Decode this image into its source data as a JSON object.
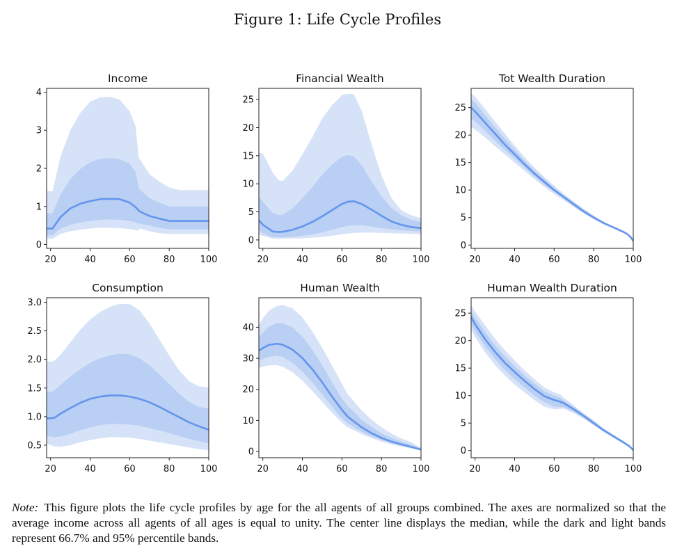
{
  "figure": {
    "title": "Figure 1: Life Cycle Profiles",
    "note_label": "Note:",
    "note_text": "This figure plots the life cycle profiles by age for the all agents of all groups combined. The axes are normalized so that the average income across all agents of all ages is equal to unity. The center line displays the median, while the dark and light bands represent 66.7% and 95% percentile bands."
  },
  "colors": {
    "median_line": "#6495ed",
    "band_dark": "#b9cff3",
    "band_light": "#d6e2f7",
    "axis": "#222222"
  },
  "chart_data": [
    {
      "type": "area",
      "title": "Income",
      "xlabel": "",
      "ylabel": "",
      "xlim": [
        18,
        100
      ],
      "ylim": [
        -0.1,
        4.1
      ],
      "xticks": [
        20,
        40,
        60,
        80,
        100
      ],
      "yticks": [
        0,
        1,
        2,
        3,
        4
      ],
      "xtick_labels": [
        "20",
        "40",
        "60",
        "80",
        "100"
      ],
      "ytick_labels": [
        "0",
        "1",
        "2",
        "3",
        "4"
      ],
      "grid": false,
      "legend": "none",
      "x": [
        18,
        21,
        25,
        30,
        35,
        40,
        45,
        50,
        55,
        60,
        63,
        64.5,
        65,
        70,
        75,
        80,
        85,
        90,
        100
      ],
      "median": [
        0.42,
        0.42,
        0.72,
        0.95,
        1.07,
        1.14,
        1.19,
        1.2,
        1.19,
        1.1,
        0.98,
        0.9,
        0.87,
        0.75,
        0.68,
        0.62,
        0.62,
        0.62,
        0.62
      ],
      "p16_7": [
        0.24,
        0.24,
        0.42,
        0.52,
        0.58,
        0.62,
        0.65,
        0.66,
        0.65,
        0.62,
        0.58,
        0.55,
        0.55,
        0.5,
        0.44,
        0.4,
        0.4,
        0.4,
        0.4
      ],
      "p83_3": [
        0.82,
        0.82,
        1.3,
        1.72,
        1.98,
        2.16,
        2.25,
        2.27,
        2.24,
        2.12,
        1.9,
        1.5,
        1.45,
        1.22,
        1.1,
        1.0,
        1.0,
        1.0,
        1.0
      ],
      "p2_5": [
        0.15,
        0.15,
        0.28,
        0.35,
        0.39,
        0.42,
        0.44,
        0.44,
        0.43,
        0.41,
        0.38,
        0.36,
        0.42,
        0.35,
        0.3,
        0.28,
        0.28,
        0.28,
        0.28
      ],
      "p97_5": [
        1.4,
        1.4,
        2.3,
        3.0,
        3.45,
        3.75,
        3.86,
        3.88,
        3.8,
        3.5,
        3.1,
        2.3,
        2.25,
        1.85,
        1.65,
        1.5,
        1.43,
        1.43,
        1.43
      ]
    },
    {
      "type": "area",
      "title": "Financial Wealth",
      "xlabel": "",
      "ylabel": "",
      "xlim": [
        18,
        100
      ],
      "ylim": [
        -1.5,
        27.0
      ],
      "xticks": [
        20,
        40,
        60,
        80,
        100
      ],
      "yticks": [
        0,
        5,
        10,
        15,
        20,
        25
      ],
      "xtick_labels": [
        "20",
        "40",
        "60",
        "80",
        "100"
      ],
      "ytick_labels": [
        "0",
        "5",
        "10",
        "15",
        "20",
        "25"
      ],
      "grid": false,
      "legend": "none",
      "x": [
        18,
        20,
        25,
        28,
        30,
        35,
        40,
        45,
        50,
        55,
        60,
        63,
        66,
        70,
        75,
        80,
        85,
        90,
        95,
        100
      ],
      "median": [
        3.5,
        2.7,
        1.5,
        1.4,
        1.45,
        1.8,
        2.4,
        3.2,
        4.2,
        5.3,
        6.4,
        6.8,
        6.9,
        6.4,
        5.4,
        4.3,
        3.3,
        2.7,
        2.3,
        2.1
      ],
      "p16_7": [
        1.8,
        1.2,
        0.5,
        0.45,
        0.45,
        0.55,
        0.75,
        1.0,
        1.35,
        1.8,
        2.3,
        2.5,
        2.6,
        2.6,
        2.4,
        2.1,
        1.9,
        1.7,
        1.6,
        1.5
      ],
      "p83_3": [
        7.8,
        6.8,
        4.8,
        4.4,
        4.5,
        5.6,
        7.4,
        9.4,
        11.6,
        13.4,
        14.8,
        15.1,
        14.9,
        13.3,
        10.4,
        7.8,
        5.7,
        4.4,
        3.6,
        3.2
      ],
      "p2_5": [
        1.0,
        0.7,
        0.25,
        0.2,
        0.2,
        0.25,
        0.3,
        0.4,
        0.55,
        0.75,
        1.0,
        1.15,
        1.25,
        1.3,
        1.3,
        1.25,
        1.2,
        1.15,
        1.1,
        1.0
      ],
      "p97_5": [
        15.5,
        15.4,
        12.0,
        10.6,
        10.5,
        12.3,
        15.2,
        18.3,
        21.6,
        24.0,
        25.8,
        26.0,
        26.0,
        23.0,
        17.0,
        11.5,
        7.5,
        5.3,
        4.4,
        3.9
      ]
    },
    {
      "type": "area",
      "title": "Tot Wealth Duration",
      "xlabel": "",
      "ylabel": "",
      "xlim": [
        18,
        100
      ],
      "ylim": [
        -0.6,
        28.5
      ],
      "xticks": [
        20,
        40,
        60,
        80,
        100
      ],
      "yticks": [
        0,
        5,
        10,
        15,
        20,
        25
      ],
      "xtick_labels": [
        "20",
        "40",
        "60",
        "80",
        "100"
      ],
      "ytick_labels": [
        "0",
        "5",
        "10",
        "15",
        "20",
        "25"
      ],
      "grid": false,
      "legend": "none",
      "x": [
        18,
        20,
        25,
        30,
        35,
        40,
        45,
        50,
        55,
        60,
        65,
        70,
        75,
        80,
        85,
        90,
        95,
        97,
        99,
        100
      ],
      "median": [
        25.0,
        24.3,
        22.3,
        20.3,
        18.3,
        16.5,
        14.7,
        13.0,
        11.5,
        10.0,
        8.7,
        7.4,
        6.1,
        5.0,
        4.0,
        3.2,
        2.4,
        2.0,
        1.3,
        0.7
      ],
      "p16_7": [
        23.0,
        22.5,
        20.8,
        19.0,
        17.3,
        15.7,
        14.1,
        12.5,
        11.0,
        9.7,
        8.4,
        7.1,
        5.9,
        4.9,
        3.9,
        3.1,
        2.3,
        1.9,
        1.2,
        0.6
      ],
      "p83_3": [
        26.5,
        25.9,
        23.7,
        21.5,
        19.4,
        17.4,
        15.4,
        13.6,
        12.0,
        10.4,
        9.0,
        7.7,
        6.4,
        5.2,
        4.1,
        3.3,
        2.5,
        2.1,
        1.4,
        0.8
      ],
      "p2_5": [
        21.5,
        21.0,
        19.6,
        18.0,
        16.5,
        15.0,
        13.5,
        12.0,
        10.6,
        9.3,
        8.1,
        6.9,
        5.7,
        4.7,
        3.8,
        3.0,
        2.2,
        1.8,
        1.1,
        0.5
      ],
      "p97_5": [
        27.6,
        27.0,
        24.8,
        22.5,
        20.3,
        18.1,
        16.0,
        14.1,
        12.4,
        10.8,
        9.3,
        7.9,
        6.6,
        5.4,
        4.3,
        3.4,
        2.6,
        2.2,
        1.5,
        0.9
      ]
    },
    {
      "type": "area",
      "title": "Consumption",
      "xlabel": "",
      "ylabel": "",
      "xlim": [
        18,
        100
      ],
      "ylim": [
        0.28,
        3.08
      ],
      "xticks": [
        20,
        40,
        60,
        80,
        100
      ],
      "yticks": [
        0.5,
        1.0,
        1.5,
        2.0,
        2.5,
        3.0
      ],
      "xtick_labels": [
        "20",
        "40",
        "60",
        "80",
        "100"
      ],
      "ytick_labels": [
        "0.5",
        "1.0",
        "1.5",
        "2.0",
        "2.5",
        "3.0"
      ],
      "grid": false,
      "legend": "none",
      "x": [
        18,
        20,
        22,
        25,
        30,
        35,
        40,
        45,
        50,
        55,
        60,
        65,
        70,
        75,
        80,
        85,
        90,
        95,
        100
      ],
      "median": [
        0.97,
        0.97,
        0.98,
        1.05,
        1.15,
        1.24,
        1.31,
        1.35,
        1.37,
        1.37,
        1.35,
        1.31,
        1.25,
        1.17,
        1.08,
        0.99,
        0.9,
        0.83,
        0.77
      ],
      "p16_7": [
        0.67,
        0.65,
        0.64,
        0.65,
        0.7,
        0.76,
        0.81,
        0.85,
        0.87,
        0.87,
        0.86,
        0.84,
        0.8,
        0.76,
        0.71,
        0.66,
        0.61,
        0.57,
        0.53
      ],
      "p83_3": [
        1.42,
        1.43,
        1.46,
        1.55,
        1.7,
        1.83,
        1.94,
        2.02,
        2.07,
        2.1,
        2.09,
        2.02,
        1.9,
        1.74,
        1.57,
        1.4,
        1.26,
        1.17,
        1.14
      ],
      "p2_5": [
        0.53,
        0.5,
        0.48,
        0.47,
        0.5,
        0.55,
        0.59,
        0.62,
        0.64,
        0.64,
        0.63,
        0.61,
        0.58,
        0.55,
        0.52,
        0.49,
        0.46,
        0.43,
        0.41
      ],
      "p97_5": [
        1.97,
        1.96,
        1.98,
        2.08,
        2.3,
        2.52,
        2.7,
        2.83,
        2.92,
        2.97,
        2.97,
        2.86,
        2.63,
        2.35,
        2.07,
        1.81,
        1.62,
        1.53,
        1.51
      ]
    },
    {
      "type": "area",
      "title": "Human Wealth",
      "xlabel": "",
      "ylabel": "",
      "xlim": [
        18,
        100
      ],
      "ylim": [
        -2.0,
        49.5
      ],
      "xticks": [
        20,
        40,
        60,
        80,
        100
      ],
      "yticks": [
        0,
        10,
        20,
        30,
        40
      ],
      "xtick_labels": [
        "20",
        "40",
        "60",
        "80",
        "100"
      ],
      "ytick_labels": [
        "0",
        "10",
        "20",
        "30",
        "40"
      ],
      "grid": false,
      "legend": "none",
      "x": [
        18,
        20,
        23,
        27,
        30,
        35,
        40,
        45,
        50,
        55,
        60,
        63,
        65,
        70,
        75,
        80,
        85,
        90,
        95,
        100
      ],
      "median": [
        32.5,
        33.3,
        34.3,
        34.7,
        34.4,
        32.8,
        30.1,
        26.5,
        22.3,
        17.7,
        13.4,
        11.2,
        10.2,
        7.8,
        5.9,
        4.4,
        3.2,
        2.3,
        1.5,
        0.6
      ],
      "p16_7": [
        29.3,
        29.8,
        30.5,
        30.8,
        30.4,
        28.6,
        25.8,
        22.3,
        18.5,
        14.4,
        10.7,
        9.0,
        8.3,
        6.4,
        4.9,
        3.7,
        2.7,
        1.9,
        1.2,
        0.5
      ],
      "p83_3": [
        36.8,
        38.3,
        40.2,
        41.3,
        41.3,
        40.0,
        37.0,
        32.8,
        27.8,
        22.3,
        17.0,
        14.5,
        13.4,
        10.2,
        7.9,
        5.9,
        4.4,
        3.2,
        2.2,
        0.9
      ],
      "p2_5": [
        27.0,
        27.3,
        27.7,
        27.8,
        27.3,
        25.5,
        22.8,
        19.5,
        16.0,
        12.5,
        9.3,
        7.8,
        7.2,
        5.6,
        4.3,
        3.2,
        2.3,
        1.6,
        1.0,
        0.4
      ],
      "p97_5": [
        40.6,
        42.8,
        45.3,
        46.8,
        47.2,
        46.1,
        43.2,
        38.7,
        33.4,
        27.7,
        21.8,
        18.3,
        17.0,
        13.2,
        10.3,
        7.8,
        5.8,
        4.2,
        3.0,
        1.2
      ]
    },
    {
      "type": "area",
      "title": "Human Wealth Duration",
      "xlabel": "",
      "ylabel": "",
      "xlim": [
        18,
        100
      ],
      "ylim": [
        -1.3,
        27.8
      ],
      "xticks": [
        20,
        40,
        60,
        80,
        100
      ],
      "yticks": [
        0,
        5,
        10,
        15,
        20,
        25
      ],
      "xtick_labels": [
        "20",
        "40",
        "60",
        "80",
        "100"
      ],
      "ytick_labels": [
        "0",
        "5",
        "10",
        "15",
        "20",
        "25"
      ],
      "grid": false,
      "legend": "none",
      "x": [
        18,
        20,
        25,
        30,
        35,
        40,
        45,
        50,
        55,
        60,
        63,
        65,
        70,
        75,
        80,
        85,
        90,
        95,
        98,
        100
      ],
      "median": [
        24.3,
        23.0,
        20.3,
        18.0,
        16.0,
        14.3,
        12.7,
        11.2,
        9.9,
        9.2,
        8.9,
        8.6,
        7.5,
        6.3,
        5.0,
        3.7,
        2.6,
        1.5,
        0.8,
        0.1
      ],
      "p16_7": [
        23.0,
        21.7,
        19.0,
        16.7,
        14.7,
        13.0,
        11.5,
        10.0,
        8.8,
        8.0,
        7.9,
        7.9,
        7.0,
        5.9,
        4.7,
        3.5,
        2.4,
        1.4,
        0.7,
        0.0
      ],
      "p83_3": [
        25.4,
        24.2,
        21.6,
        19.2,
        17.2,
        15.4,
        13.7,
        12.2,
        10.8,
        10.0,
        9.6,
        9.1,
        7.9,
        6.6,
        5.3,
        3.9,
        2.8,
        1.7,
        0.9,
        0.2
      ],
      "p2_5": [
        22.0,
        20.7,
        17.9,
        15.6,
        13.7,
        12.0,
        10.6,
        9.2,
        8.0,
        7.5,
        7.6,
        7.6,
        6.8,
        5.8,
        4.6,
        3.4,
        2.3,
        1.3,
        0.6,
        0.0
      ],
      "p97_5": [
        26.5,
        25.3,
        22.8,
        20.4,
        18.3,
        16.4,
        14.6,
        13.0,
        11.5,
        10.6,
        10.2,
        9.6,
        8.2,
        6.8,
        5.5,
        4.1,
        2.9,
        1.8,
        1.0,
        0.2
      ]
    }
  ]
}
